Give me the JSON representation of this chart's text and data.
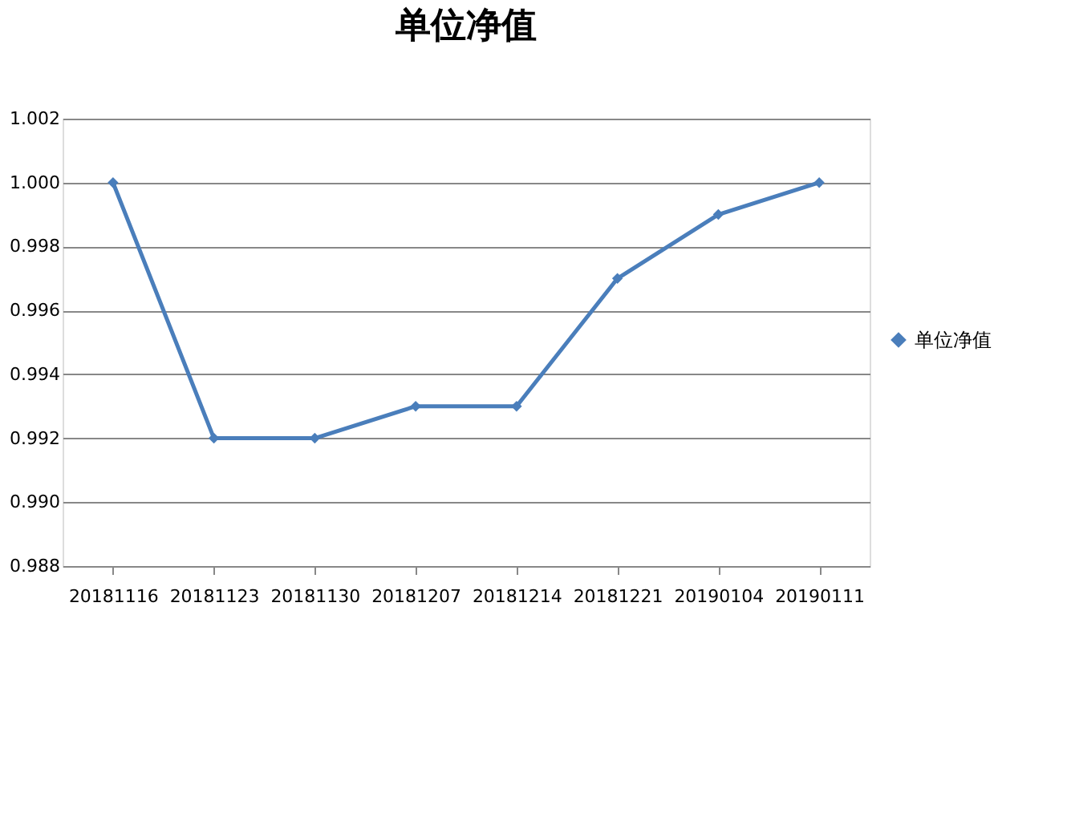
{
  "chart_data": {
    "type": "line",
    "title": "单位净值",
    "categories": [
      "20181116",
      "20181123",
      "20181130",
      "20181207",
      "20181214",
      "20181221",
      "20190104",
      "20190111"
    ],
    "series": [
      {
        "name": "单位净值",
        "color": "#4a7ebb",
        "values": [
          1.0,
          0.992,
          0.992,
          0.993,
          0.993,
          0.997,
          0.999,
          1.0
        ]
      }
    ],
    "ylim": [
      0.988,
      1.002
    ],
    "yticks": [
      0.988,
      {
        "value": 0.99,
        "label": "0.990"
      },
      0.992,
      0.994,
      0.996,
      0.998,
      {
        "value": 1,
        "label": "1.000"
      },
      1.002
    ],
    "grid": "y",
    "legend": "right",
    "marker": "diamond",
    "line_style": "solid"
  }
}
